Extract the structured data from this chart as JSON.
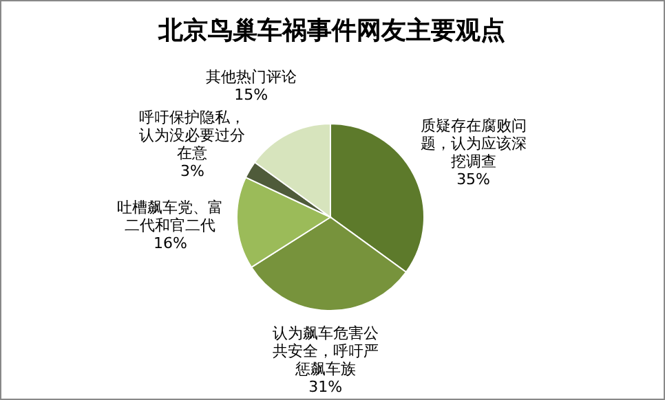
{
  "chart_data": {
    "type": "pie",
    "title": "北京鸟巢车祸事件网友主要观点",
    "categories": [
      "质疑存在腐败问题，认为应该深挖调查",
      "认为飙车危害公共安全，呼吁严惩飙车族",
      "吐槽飙车党、富二代和官二代",
      "呼吁保护隐私，认为没必要过分在意",
      "其他热门评论"
    ],
    "values": [
      35,
      31,
      16,
      3,
      15
    ],
    "colors": [
      "#5d7a2b",
      "#77933c",
      "#9bbb59",
      "#4f5b3a",
      "#d7e4bd"
    ],
    "value_labels": [
      "35%",
      "31%",
      "16%",
      "3%",
      "15%"
    ],
    "legend": false
  }
}
